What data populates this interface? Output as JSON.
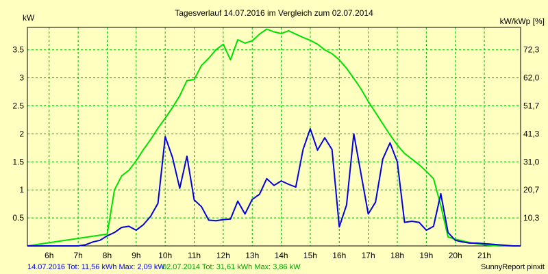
{
  "chart_data": {
    "type": "line",
    "title": "Tagesverlauf 14.07.2016 im Vergleich zum 02.07.2014",
    "ylabel_left": "kW",
    "ylabel_right": "kW/kWp [%]",
    "x_tick_labels": [
      "6h",
      "7h",
      "8h",
      "9h",
      "10h",
      "11h",
      "12h",
      "13h",
      "14h",
      "15h",
      "16h",
      "17h",
      "18h",
      "19h",
      "20h",
      "21h"
    ],
    "y_ticks_left": [
      "0.5",
      "1",
      "1.5",
      "2",
      "2.5",
      "3",
      "3.5"
    ],
    "y_ticks_right": [
      "10,3",
      "20,7",
      "31,0",
      "41,3",
      "51,7",
      "62,0",
      "72,3"
    ],
    "xlim_hours": [
      5.25,
      22.25
    ],
    "ylim": [
      0,
      3.9
    ],
    "grid": true,
    "series": [
      {
        "name": "14.07.2016",
        "color": "#0000e0",
        "x": [
          5.25,
          6.5,
          7.0,
          7.25,
          7.5,
          7.75,
          8.0,
          8.25,
          8.5,
          8.75,
          9.0,
          9.25,
          9.5,
          9.75,
          10.0,
          10.25,
          10.5,
          10.75,
          11.0,
          11.25,
          11.5,
          11.75,
          12.0,
          12.25,
          12.5,
          12.75,
          13.0,
          13.25,
          13.5,
          13.75,
          14.0,
          14.25,
          14.5,
          14.75,
          15.0,
          15.25,
          15.5,
          15.75,
          16.0,
          16.25,
          16.5,
          16.75,
          17.0,
          17.25,
          17.5,
          17.75,
          18.0,
          18.25,
          18.5,
          18.75,
          19.0,
          19.25,
          19.5,
          19.75,
          20.0,
          20.25,
          20.5,
          20.75,
          21.0,
          21.25,
          21.5,
          22.0,
          22.25
        ],
        "values": [
          0,
          0,
          0,
          0.02,
          0.07,
          0.1,
          0.18,
          0.24,
          0.33,
          0.35,
          0.28,
          0.38,
          0.53,
          0.76,
          1.95,
          1.58,
          1.03,
          1.6,
          0.82,
          0.7,
          0.46,
          0.45,
          0.47,
          0.48,
          0.8,
          0.57,
          0.83,
          0.92,
          1.2,
          1.08,
          1.16,
          1.1,
          1.05,
          1.72,
          2.09,
          1.71,
          1.93,
          1.72,
          0.34,
          0.73,
          2.0,
          1.28,
          0.57,
          0.78,
          1.55,
          1.84,
          1.5,
          0.42,
          0.44,
          0.42,
          0.28,
          0.35,
          0.93,
          0.24,
          0.1,
          0.07,
          0.05,
          0.05,
          0.04,
          0.03,
          0.02,
          0.0,
          0.0
        ]
      },
      {
        "name": "02.07.2014",
        "color": "#00e000",
        "x": [
          5.25,
          8.0,
          8.25,
          8.5,
          8.75,
          9.0,
          9.25,
          9.5,
          9.75,
          10.0,
          10.25,
          10.5,
          10.75,
          11.0,
          11.25,
          11.5,
          11.75,
          12.0,
          12.25,
          12.5,
          12.75,
          13.0,
          13.25,
          13.5,
          13.75,
          14.0,
          14.25,
          14.5,
          14.75,
          15.0,
          15.25,
          15.5,
          15.75,
          16.0,
          16.25,
          16.5,
          16.75,
          17.0,
          17.25,
          17.5,
          17.75,
          18.0,
          18.25,
          18.5,
          18.75,
          19.0,
          19.25,
          19.5,
          19.75,
          20.0,
          20.25,
          20.5,
          20.75,
          21.0,
          21.25,
          21.5,
          21.75,
          22.0,
          22.25
        ],
        "values": [
          0.0,
          0.21,
          1.0,
          1.25,
          1.35,
          1.52,
          1.72,
          1.9,
          2.1,
          2.28,
          2.47,
          2.68,
          2.95,
          2.97,
          3.22,
          3.35,
          3.5,
          3.6,
          3.32,
          3.68,
          3.62,
          3.66,
          3.78,
          3.87,
          3.82,
          3.79,
          3.84,
          3.78,
          3.72,
          3.67,
          3.6,
          3.5,
          3.43,
          3.32,
          3.17,
          2.99,
          2.8,
          2.58,
          2.38,
          2.18,
          1.98,
          1.8,
          1.65,
          1.55,
          1.45,
          1.33,
          1.2,
          0.72,
          0.16,
          0.12,
          0.09,
          0.06,
          0.04,
          0.02,
          0.01,
          0.0,
          0.0,
          0.0,
          0.0
        ]
      }
    ],
    "footer": {
      "blue_text": "14.07.2016 Tot: 11,56 kWh Max: 2,09 kW",
      "green_text": "02.07.2014 Tot: 31,61 kWh Max: 3,86 kW",
      "credit": "SunnyReport pinxit"
    }
  }
}
